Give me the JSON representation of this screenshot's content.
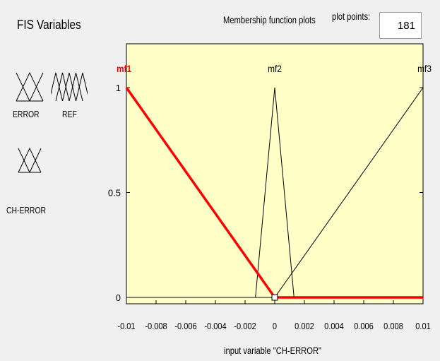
{
  "header": {
    "fis_title": "FIS Variables",
    "mf_title": "Membership function plots",
    "plot_points_label": "plot points:",
    "plot_points_value": "181"
  },
  "variables": [
    {
      "label": "ERROR",
      "kind": "input",
      "selected": false,
      "color": "#ffff80"
    },
    {
      "label": "REF",
      "kind": "output",
      "selected": false,
      "color": "#80ffff"
    },
    {
      "label": "CH-ERROR",
      "kind": "input",
      "selected": true,
      "color": "#ffff80"
    }
  ],
  "colors": {
    "plot_bg": "#ffffc8",
    "selected_mf": "#ff0000",
    "mf_line": "#000000",
    "selected_border": "#ff0000"
  },
  "plot": {
    "xlabel": "input variable \"CH-ERROR\"",
    "xlim": [
      -0.01,
      0.01
    ],
    "ylim": [
      0,
      1
    ],
    "x_ticks": [
      "-0.01",
      "-0.008",
      "-0.006",
      "-0.004",
      "-0.002",
      "0",
      "0.002",
      "0.004",
      "0.006",
      "0.008",
      "0.01"
    ],
    "y_ticks": [
      "0",
      "0.5",
      "1"
    ],
    "membership_functions": [
      {
        "name": "mf1",
        "selected": true,
        "points": [
          [
            -0.01,
            1
          ],
          [
            0,
            0
          ],
          [
            0.01,
            0
          ]
        ]
      },
      {
        "name": "mf2",
        "selected": false,
        "points": [
          [
            -0.01,
            0
          ],
          [
            -0.0013,
            0
          ],
          [
            0,
            1
          ],
          [
            0.0013,
            0
          ],
          [
            0.01,
            0
          ]
        ]
      },
      {
        "name": "mf3",
        "selected": false,
        "points": [
          [
            -0.01,
            0
          ],
          [
            0,
            0
          ],
          [
            0.01,
            1
          ]
        ]
      }
    ]
  }
}
